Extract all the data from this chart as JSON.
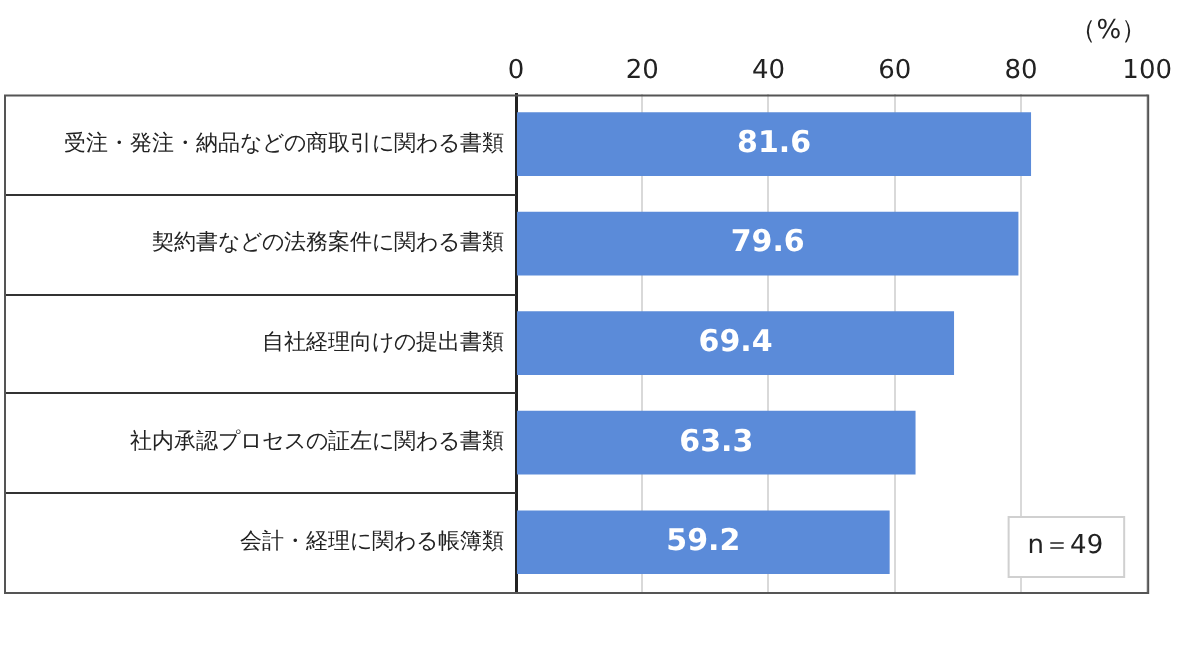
{
  "chart_data": {
    "type": "bar",
    "orientation": "horizontal",
    "xlabel": "（%）",
    "categories": [
      "受注・発注・納品などの商取引に関わる書類",
      "契約書などの法務案件に関わる書類",
      "自社経理向けの提出書類",
      "社内承認プロセスの証左に関わる書類",
      "会計・経理に関わる帳簿類"
    ],
    "values": [
      81.6,
      79.6,
      69.4,
      63.3,
      59.2
    ],
    "color": "#5b8bd9",
    "xlim": [
      0,
      100
    ],
    "xticks": [
      0,
      20,
      40,
      60,
      80,
      100
    ],
    "grid": "x",
    "data_labels": true,
    "legend": false,
    "annotations": [
      "n＝49"
    ]
  }
}
